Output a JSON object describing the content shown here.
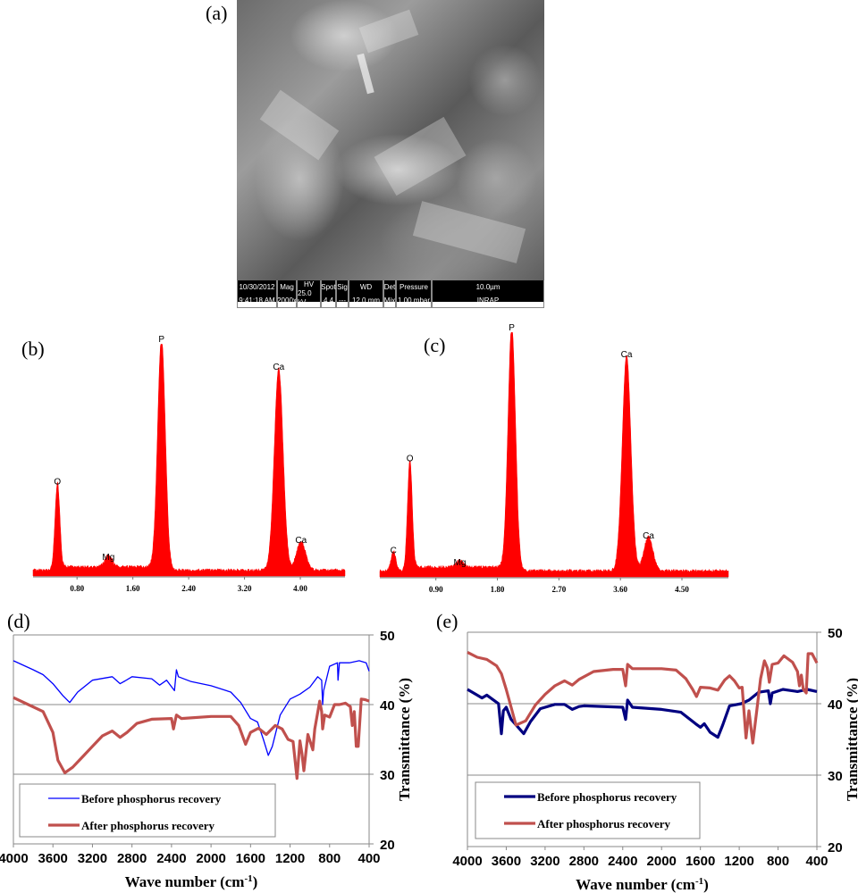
{
  "panels": {
    "a": "(a)",
    "b": "(b)",
    "c": "(c)",
    "d": "(d)",
    "e": "(e)"
  },
  "sem_info": {
    "date": "10/30/2012",
    "time": "9:41:18 AM",
    "mag_label": "Mag",
    "mag": "2000x",
    "hv_label": "HV",
    "hv": "25.0 kV",
    "spot_label": "Spot",
    "spot": "4.4",
    "sig_label": "Sig",
    "sig": "---",
    "wd_label": "WD",
    "wd": "12.0 mm",
    "det_label": "Det",
    "det": "Mix",
    "pressure_label": "Pressure",
    "pressure": "1.00  mbar",
    "scale_bar": "10.0µm",
    "lab": "INRAP"
  },
  "chart_data": [
    {
      "id": "b",
      "type": "area",
      "color": "#ff0000",
      "xlim": [
        0.17,
        4.64
      ],
      "x_ticks": [
        "0.80",
        "1.60",
        "2.40",
        "3.20",
        "4.00"
      ],
      "peaks": [
        {
          "label": "O",
          "energy": 0.52,
          "intensity": 38
        },
        {
          "label": "Mg",
          "energy": 1.25,
          "intensity": 5
        },
        {
          "label": "P",
          "energy": 2.01,
          "intensity": 100
        },
        {
          "label": "Ca",
          "energy": 3.69,
          "intensity": 88
        },
        {
          "label": "Ca",
          "energy": 4.01,
          "intensity": 12.5
        }
      ]
    },
    {
      "id": "c",
      "type": "area",
      "color": "#ff0000",
      "xlim": [
        0.08,
        5.18
      ],
      "x_ticks": [
        "0.90",
        "1.80",
        "2.70",
        "3.60",
        "4.50"
      ],
      "peaks": [
        {
          "label": "C",
          "energy": 0.28,
          "intensity": 8
        },
        {
          "label": "O",
          "energy": 0.52,
          "intensity": 46
        },
        {
          "label": "Mg",
          "energy": 1.25,
          "intensity": 3
        },
        {
          "label": "P",
          "energy": 2.01,
          "intensity": 100
        },
        {
          "label": "Ca",
          "energy": 3.69,
          "intensity": 89
        },
        {
          "label": "Ca",
          "energy": 4.01,
          "intensity": 14
        }
      ]
    },
    {
      "id": "d",
      "type": "line",
      "xlabel": "Wave number (cm-1)",
      "ylabel": "Transmittance (%)",
      "xlim": [
        4000,
        400
      ],
      "ylim": [
        20,
        50
      ],
      "x_ticks": [
        4000,
        3600,
        3200,
        2800,
        2400,
        2000,
        1600,
        1200,
        800,
        400
      ],
      "y_ticks": [
        20,
        30,
        40,
        50
      ],
      "grid": true,
      "legend": "bottom-left",
      "series": [
        {
          "name": "Before phosphorus recovery",
          "color": "#0000ff",
          "points": [
            [
              4000,
              46.3
            ],
            [
              3800,
              45
            ],
            [
              3700,
              44.3
            ],
            [
              3600,
              43
            ],
            [
              3500,
              41.3
            ],
            [
              3430,
              40.3
            ],
            [
              3350,
              41.8
            ],
            [
              3200,
              43.5
            ],
            [
              3000,
              44
            ],
            [
              2920,
              43
            ],
            [
              2870,
              43.4
            ],
            [
              2800,
              44
            ],
            [
              2600,
              43.7
            ],
            [
              2520,
              42.8
            ],
            [
              2450,
              43.5
            ],
            [
              2370,
              42
            ],
            [
              2350,
              45
            ],
            [
              2330,
              44
            ],
            [
              2200,
              43.3
            ],
            [
              2000,
              42.7
            ],
            [
              1800,
              41.8
            ],
            [
              1700,
              40.3
            ],
            [
              1600,
              38
            ],
            [
              1530,
              37.5
            ],
            [
              1470,
              35
            ],
            [
              1420,
              32.7
            ],
            [
              1380,
              34
            ],
            [
              1300,
              38.5
            ],
            [
              1200,
              40.8
            ],
            [
              1100,
              41.5
            ],
            [
              1000,
              42.5
            ],
            [
              920,
              44
            ],
            [
              880,
              43.5
            ],
            [
              870,
              40
            ],
            [
              860,
              42
            ],
            [
              800,
              45.5
            ],
            [
              720,
              46
            ],
            [
              715,
              43.5
            ],
            [
              700,
              46
            ],
            [
              600,
              46
            ],
            [
              500,
              46.3
            ],
            [
              430,
              46
            ],
            [
              400,
              44.8
            ]
          ]
        },
        {
          "name": "After phosphorus recovery",
          "color": "#c0504d",
          "points": [
            [
              4000,
              41
            ],
            [
              3850,
              40
            ],
            [
              3700,
              39
            ],
            [
              3600,
              36
            ],
            [
              3550,
              32
            ],
            [
              3480,
              30.2
            ],
            [
              3400,
              31
            ],
            [
              3300,
              32.5
            ],
            [
              3200,
              34
            ],
            [
              3100,
              35.5
            ],
            [
              3000,
              36.2
            ],
            [
              2920,
              35.3
            ],
            [
              2850,
              36
            ],
            [
              2750,
              37.3
            ],
            [
              2600,
              37.9
            ],
            [
              2400,
              38
            ],
            [
              2380,
              36.5
            ],
            [
              2350,
              38.5
            ],
            [
              2300,
              38
            ],
            [
              2000,
              38.3
            ],
            [
              1800,
              38.3
            ],
            [
              1720,
              37
            ],
            [
              1650,
              34.3
            ],
            [
              1600,
              36
            ],
            [
              1520,
              36.6
            ],
            [
              1440,
              35.7
            ],
            [
              1350,
              37
            ],
            [
              1280,
              36.5
            ],
            [
              1220,
              35
            ],
            [
              1170,
              34.7
            ],
            [
              1130,
              29.4
            ],
            [
              1100,
              34.8
            ],
            [
              1080,
              33
            ],
            [
              1060,
              30.5
            ],
            [
              1020,
              35.7
            ],
            [
              970,
              33.5
            ],
            [
              950,
              36.5
            ],
            [
              900,
              40.5
            ],
            [
              880,
              39
            ],
            [
              870,
              36.5
            ],
            [
              850,
              38.5
            ],
            [
              800,
              38.2
            ],
            [
              750,
              40
            ],
            [
              700,
              40
            ],
            [
              640,
              40.2
            ],
            [
              590,
              39.7
            ],
            [
              570,
              37
            ],
            [
              550,
              39
            ],
            [
              530,
              34
            ],
            [
              510,
              34
            ],
            [
              480,
              40.8
            ],
            [
              440,
              40.7
            ],
            [
              400,
              40.5
            ]
          ]
        }
      ]
    },
    {
      "id": "e",
      "type": "line",
      "xlabel": "Wave number (cm-1)",
      "ylabel": "Transmittance (%)",
      "xlim": [
        4000,
        400
      ],
      "ylim": [
        20,
        50
      ],
      "x_ticks": [
        4000,
        3600,
        3200,
        2800,
        2400,
        2000,
        1600,
        1200,
        800,
        400
      ],
      "y_ticks": [
        20,
        30,
        40,
        50
      ],
      "grid": true,
      "legend": "bottom-left",
      "series": [
        {
          "name": "Before phosphorus recovery",
          "color": "#000080",
          "points": [
            [
              4000,
              42
            ],
            [
              3900,
              41.2
            ],
            [
              3850,
              40.8
            ],
            [
              3800,
              41.2
            ],
            [
              3720,
              40.4
            ],
            [
              3680,
              40
            ],
            [
              3650,
              35.8
            ],
            [
              3630,
              39
            ],
            [
              3600,
              39.5
            ],
            [
              3550,
              37.8
            ],
            [
              3420,
              35.8
            ],
            [
              3350,
              37.5
            ],
            [
              3250,
              39.3
            ],
            [
              3100,
              39.9
            ],
            [
              3000,
              39.9
            ],
            [
              2920,
              39.2
            ],
            [
              2850,
              39.6
            ],
            [
              2800,
              39.7
            ],
            [
              2400,
              39.5
            ],
            [
              2370,
              37.8
            ],
            [
              2350,
              40.5
            ],
            [
              2300,
              39.5
            ],
            [
              2000,
              39.2
            ],
            [
              1800,
              38.8
            ],
            [
              1650,
              37.2
            ],
            [
              1600,
              36.7
            ],
            [
              1560,
              37.2
            ],
            [
              1500,
              36
            ],
            [
              1420,
              35.3
            ],
            [
              1370,
              37
            ],
            [
              1300,
              39.7
            ],
            [
              1180,
              40
            ],
            [
              1100,
              40.5
            ],
            [
              1000,
              41.6
            ],
            [
              900,
              41.8
            ],
            [
              880,
              40
            ],
            [
              860,
              41.5
            ],
            [
              750,
              42
            ],
            [
              700,
              41.9
            ],
            [
              600,
              41.7
            ],
            [
              500,
              42
            ],
            [
              400,
              41.7
            ]
          ]
        },
        {
          "name": "After phosphorus recovery",
          "color": "#c0504d",
          "points": [
            [
              4000,
              47.2
            ],
            [
              3900,
              46.5
            ],
            [
              3800,
              46.2
            ],
            [
              3700,
              45.3
            ],
            [
              3650,
              44.2
            ],
            [
              3600,
              42
            ],
            [
              3550,
              39.5
            ],
            [
              3500,
              37
            ],
            [
              3400,
              37.6
            ],
            [
              3300,
              39.8
            ],
            [
              3200,
              41.3
            ],
            [
              3100,
              42.5
            ],
            [
              3000,
              43.2
            ],
            [
              2920,
              42.6
            ],
            [
              2850,
              43.4
            ],
            [
              2700,
              44.5
            ],
            [
              2500,
              44.8
            ],
            [
              2400,
              44.8
            ],
            [
              2370,
              42.5
            ],
            [
              2350,
              45.5
            ],
            [
              2300,
              44.9
            ],
            [
              2000,
              44.9
            ],
            [
              1850,
              44.7
            ],
            [
              1750,
              43.5
            ],
            [
              1680,
              42
            ],
            [
              1640,
              41
            ],
            [
              1600,
              42.3
            ],
            [
              1500,
              42.2
            ],
            [
              1420,
              41.9
            ],
            [
              1350,
              43.3
            ],
            [
              1300,
              43.9
            ],
            [
              1250,
              43.2
            ],
            [
              1200,
              42.2
            ],
            [
              1170,
              42.3
            ],
            [
              1130,
              35.2
            ],
            [
              1100,
              39
            ],
            [
              1060,
              34.5
            ],
            [
              1020,
              39
            ],
            [
              980,
              43.5
            ],
            [
              940,
              46
            ],
            [
              910,
              45
            ],
            [
              890,
              43
            ],
            [
              860,
              45.5
            ],
            [
              800,
              45.7
            ],
            [
              740,
              46.7
            ],
            [
              650,
              45.8
            ],
            [
              600,
              44.5
            ],
            [
              580,
              42.5
            ],
            [
              560,
              44
            ],
            [
              540,
              42
            ],
            [
              510,
              41.5
            ],
            [
              490,
              47
            ],
            [
              450,
              47
            ],
            [
              400,
              45.7
            ]
          ]
        }
      ]
    }
  ]
}
